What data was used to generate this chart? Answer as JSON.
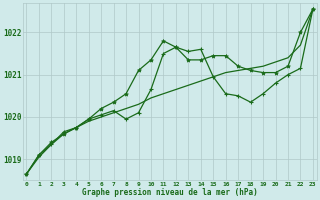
{
  "background_color": "#d0eaea",
  "grid_color": "#b0c8c8",
  "line_color": "#1a6b1a",
  "text_color": "#1a6b1a",
  "xlabel": "Graphe pression niveau de la mer (hPa)",
  "x_hours": [
    0,
    1,
    2,
    3,
    4,
    5,
    6,
    7,
    8,
    9,
    10,
    11,
    12,
    13,
    14,
    15,
    16,
    17,
    18,
    19,
    20,
    21,
    22,
    23
  ],
  "series1": [
    1018.65,
    1019.1,
    1019.4,
    1019.6,
    1019.75,
    1019.95,
    1020.2,
    1020.35,
    1020.55,
    1021.1,
    1021.35,
    1021.8,
    1021.65,
    1021.35,
    1021.35,
    1021.45,
    1021.45,
    1021.2,
    1021.1,
    1021.05,
    1021.05,
    1021.2,
    1022.0,
    1022.55
  ],
  "series2": [
    1018.65,
    1019.1,
    1019.35,
    1019.65,
    1019.75,
    1019.95,
    1020.05,
    1020.15,
    1019.95,
    1020.1,
    1020.65,
    1021.5,
    1021.65,
    1021.55,
    1021.6,
    1020.95,
    1020.55,
    1020.5,
    1020.35,
    1020.55,
    1020.8,
    1021.0,
    1021.15,
    1022.55
  ],
  "series3": [
    1018.65,
    1019.05,
    1019.35,
    1019.6,
    1019.75,
    1019.9,
    1020.0,
    1020.1,
    1020.2,
    1020.3,
    1020.45,
    1020.55,
    1020.65,
    1020.75,
    1020.85,
    1020.95,
    1021.05,
    1021.1,
    1021.15,
    1021.2,
    1021.3,
    1021.4,
    1021.7,
    1022.55
  ],
  "ylim": [
    1018.5,
    1022.7
  ],
  "yticks": [
    1019,
    1020,
    1021,
    1022
  ],
  "xlim": [
    -0.3,
    23.3
  ]
}
